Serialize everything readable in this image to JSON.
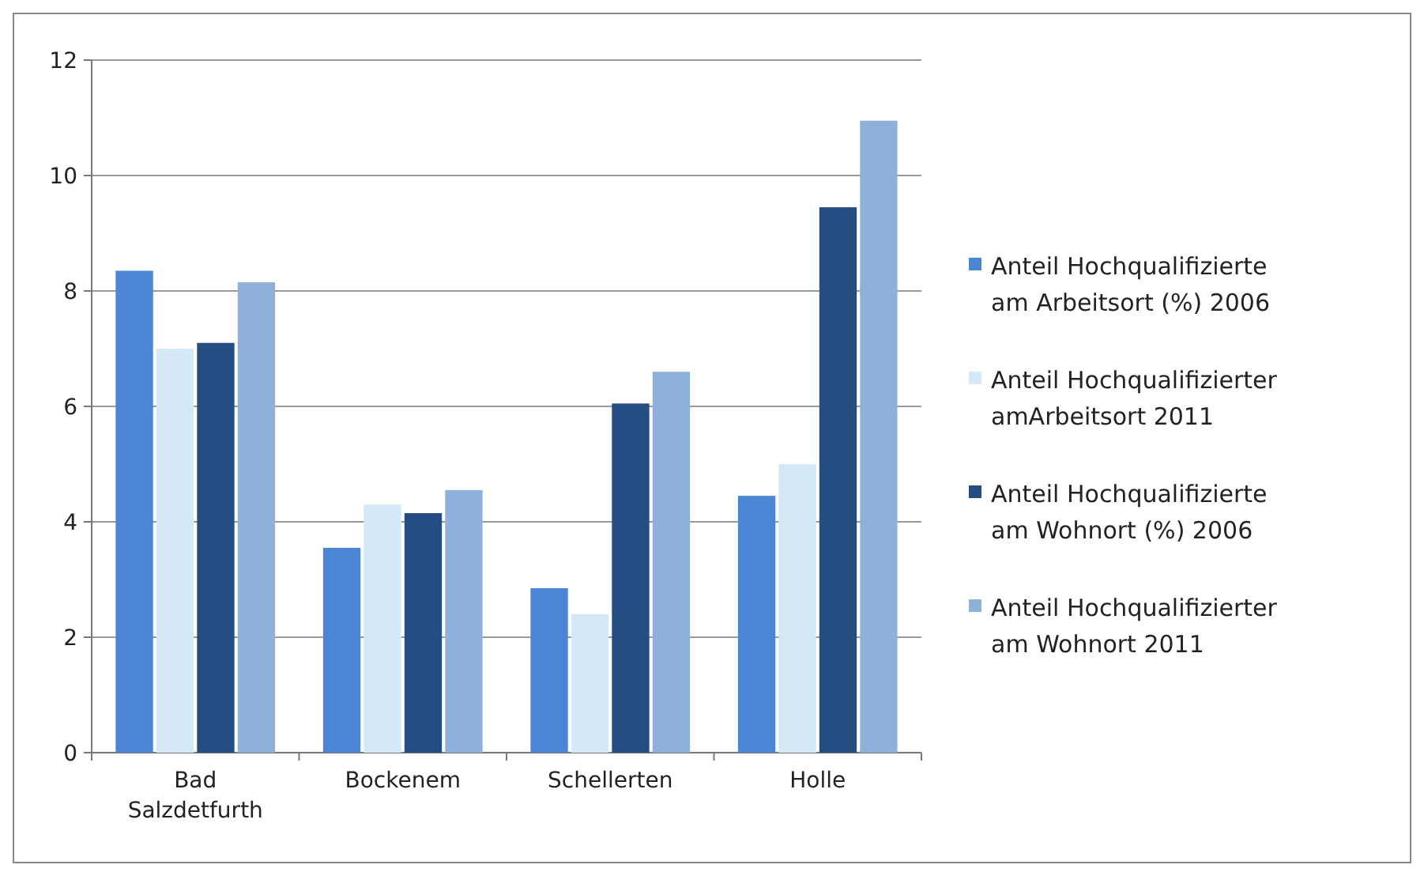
{
  "chart_data": {
    "type": "bar",
    "categories": [
      "Bad Salzdetfurth",
      "Bockenem",
      "Schellerten",
      "Holle"
    ],
    "series": [
      {
        "name": "Anteil Hochqualifizierte am Arbeitsort (%) 2006",
        "color": "#4a86d4",
        "values": [
          8.35,
          3.55,
          2.85,
          4.45
        ]
      },
      {
        "name": "Anteil Hochqualifizierter amArbeitsort 2011",
        "color": "#d4e8f8",
        "values": [
          7.0,
          4.3,
          2.4,
          5.0
        ]
      },
      {
        "name": "Anteil Hochqualifizierte am Wohnort (%) 2006",
        "color": "#254d82",
        "values": [
          7.1,
          4.15,
          6.05,
          9.45
        ]
      },
      {
        "name": "Anteil Hochqualifizierter am Wohnort 2011",
        "color": "#8fb0d8",
        "values": [
          8.15,
          4.55,
          6.6,
          10.95
        ]
      }
    ],
    "ylim": [
      0,
      12
    ],
    "yticks": [
      0,
      2,
      4,
      6,
      8,
      10,
      12
    ],
    "grid": "y",
    "legend": "right"
  }
}
